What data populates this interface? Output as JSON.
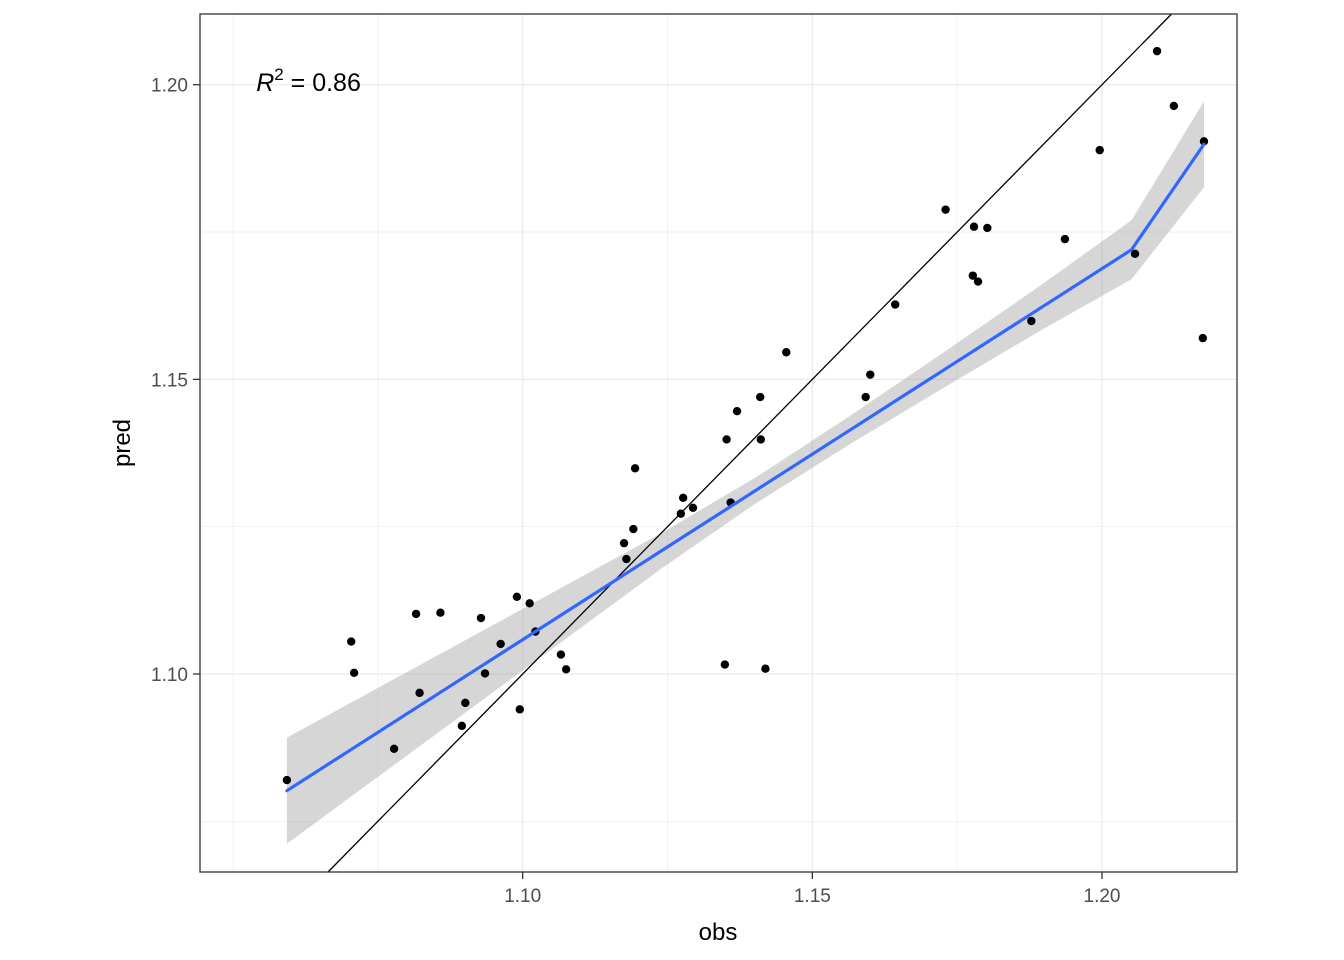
{
  "chart_data": {
    "type": "scatter",
    "title": "",
    "xlabel": "obs",
    "ylabel": "pred",
    "xlim": [
      1.0443,
      1.2233
    ],
    "ylim": [
      1.0664,
      1.212
    ],
    "xticks": [
      1.1,
      1.15,
      1.2
    ],
    "yticks": [
      1.1,
      1.15,
      1.2
    ],
    "xtick_labels": [
      "1.10",
      "1.15",
      "1.20"
    ],
    "ytick_labels": [
      "1.10",
      "1.15",
      "1.20"
    ],
    "grid": true,
    "legend": "none",
    "annotation": {
      "italic": "R",
      "superscript": "2",
      "text": " = 0.86",
      "x": 1.054,
      "y": 1.2005
    },
    "identity_line": {
      "slope": 1,
      "intercept": 0
    },
    "fit": {
      "method": "lm with 95% confidence band",
      "x": [
        1.0593,
        1.0755,
        1.0917,
        1.1079,
        1.1241,
        1.1403,
        1.1565,
        1.1727,
        1.1889,
        1.2051,
        1.2176
      ],
      "y": [
        1.0802,
        1.0904,
        1.1006,
        1.1108,
        1.121,
        1.1312,
        1.1414,
        1.1516,
        1.1618,
        1.172,
        1.1899
      ],
      "ci_lower": [
        1.0712,
        1.0829,
        1.0946,
        1.1063,
        1.118,
        1.129,
        1.139,
        1.1486,
        1.158,
        1.167,
        1.1826
      ],
      "ci_upper": [
        1.0892,
        1.0979,
        1.1066,
        1.1153,
        1.124,
        1.1334,
        1.1438,
        1.1546,
        1.1656,
        1.177,
        1.1972
      ]
    },
    "series": [
      {
        "x": [
          1.0593,
          1.0704,
          1.0709,
          1.0778,
          1.0816,
          1.0822,
          1.0858,
          1.0895,
          1.0901,
          1.0928,
          1.0935,
          1.0962,
          1.099,
          1.0995,
          1.1012,
          1.1022,
          1.1066,
          1.1075,
          1.1175,
          1.1179,
          1.1191,
          1.1194,
          1.1273,
          1.1277,
          1.1294,
          1.1349,
          1.1352,
          1.1359,
          1.137,
          1.141,
          1.1411,
          1.1419,
          1.1455,
          1.1592,
          1.16,
          1.1643,
          1.173,
          1.1777,
          1.1779,
          1.1786,
          1.1802,
          1.1878,
          1.1936,
          1.1996,
          1.2057,
          1.2095,
          1.2124,
          1.2174,
          1.2176
        ],
        "y": [
          1.082,
          1.1055,
          1.1002,
          1.0873,
          1.1102,
          1.0968,
          1.1104,
          1.0912,
          1.0951,
          1.1095,
          1.1001,
          1.1051,
          1.1131,
          1.094,
          1.112,
          1.1072,
          1.1033,
          1.1008,
          1.1222,
          1.1195,
          1.1246,
          1.1349,
          1.1272,
          1.1299,
          1.1282,
          1.1016,
          1.1398,
          1.1291,
          1.1446,
          1.147,
          1.1398,
          1.1009,
          1.1546,
          1.147,
          1.1508,
          1.1627,
          1.1788,
          1.1676,
          1.1759,
          1.1666,
          1.1757,
          1.1599,
          1.1738,
          1.1889,
          1.1713,
          1.2057,
          1.1964,
          1.157,
          1.1904
        ]
      }
    ]
  }
}
